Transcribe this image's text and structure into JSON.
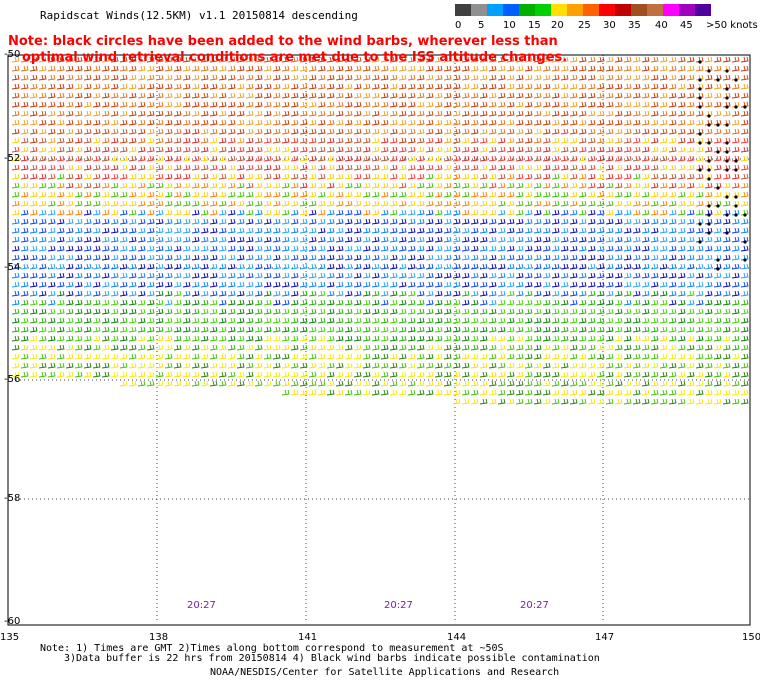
{
  "title": "Rapidscat Winds(12.5KM) v1.1 20150814 descending",
  "note_red_line1": "Note: black circles have been added to the wind barbs, wherever less than",
  "note_red_line2": "optimal wind retrieval conditions are met due to the ISS altitude changes.",
  "legend": {
    "unit": "knots",
    "labels": [
      "0",
      "5",
      "10",
      "15",
      "20",
      "25",
      "30",
      "35",
      "40",
      "45",
      ">50 knots"
    ],
    "colors": [
      "#404040",
      "#909090",
      "#00a0ff",
      "#0060ff",
      "#00b000",
      "#00d000",
      "#ffe000",
      "#ffa000",
      "#ff6000",
      "#ff0000",
      "#c00000",
      "#a05020",
      "#c07040",
      "#ff00ff",
      "#a000c0",
      "#5000a0"
    ]
  },
  "lat_labels": [
    "-50",
    "-52",
    "-54",
    "-56",
    "-58",
    "-60"
  ],
  "lon_labels": [
    "135",
    "138",
    "141",
    "144",
    "147",
    "150"
  ],
  "time_labels": [
    "20:27",
    "20:27",
    "20:27"
  ],
  "footnote_line1": "Note: 1) Times are GMT 2)Times along bottom correspond to measurement at ~50S",
  "footnote_line2": "3)Data buffer is 22 hrs from 20150814 4) Black wind barbs indicate possible contamination",
  "footnote_line3": "NOAA/NESDIS/Center for Satellite Applications and Research"
}
